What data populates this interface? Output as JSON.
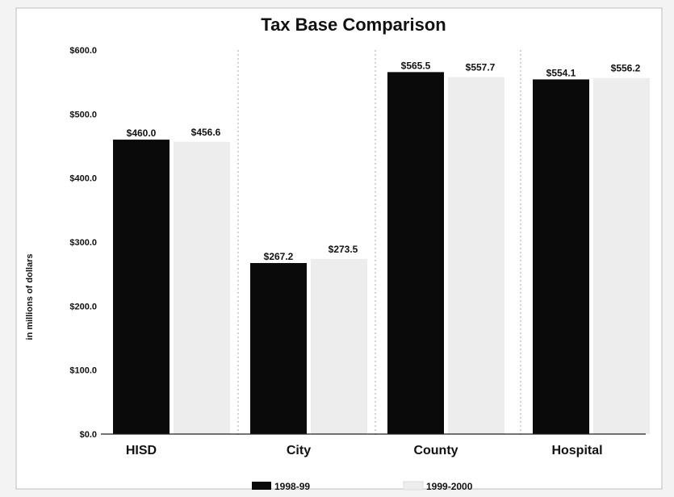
{
  "chart_data": {
    "type": "bar",
    "title": "Tax Base Comparison",
    "ylabel": "in millions of dollars",
    "xlabel": "",
    "categories": [
      "HISD",
      "City",
      "County",
      "Hospital"
    ],
    "series": [
      {
        "name": "1998-99",
        "values": [
          460.0,
          267.2,
          565.5,
          554.1
        ],
        "labels": [
          "$460.0",
          "$267.2",
          "$565.5",
          "$554.1"
        ],
        "color": "#0a0a0a"
      },
      {
        "name": "1999-2000",
        "values": [
          456.6,
          273.5,
          557.7,
          556.2
        ],
        "labels": [
          "$456.6",
          "$273.5",
          "$557.7",
          "$556.2"
        ],
        "color": "#ededed"
      }
    ],
    "ylim": [
      0,
      600
    ],
    "yticks": [
      0,
      100,
      200,
      300,
      400,
      500,
      600
    ],
    "ytick_labels": [
      "$0.0",
      "$100.0",
      "$200.0",
      "$300.0",
      "$400.0",
      "$500.0",
      "$600.0"
    ],
    "grid": false,
    "legend": "bottom"
  }
}
